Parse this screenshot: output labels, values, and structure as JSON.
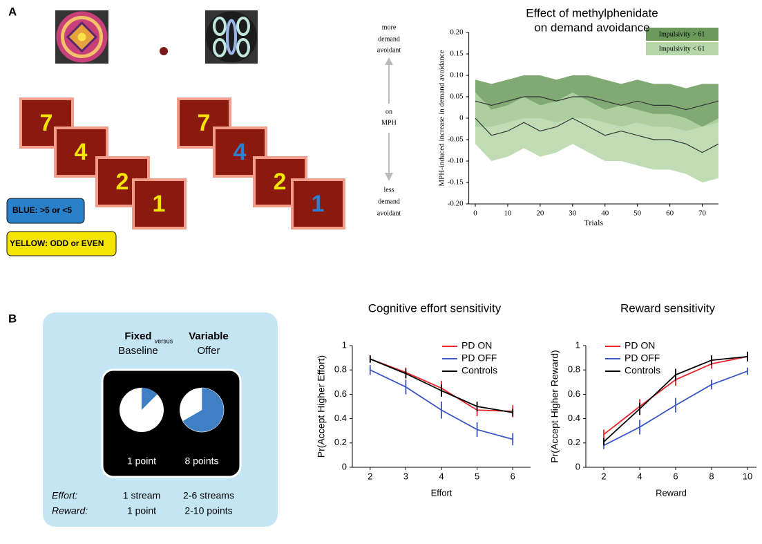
{
  "panel_labels": [
    "A",
    "B"
  ],
  "panel_a": {
    "left_cards": [
      "7",
      "4",
      "2",
      "1"
    ],
    "right_cards": [
      "7",
      "4",
      "2",
      "1"
    ],
    "rules": [
      "BLUE: >5 or <5",
      "YELLOW: ODD or EVEN"
    ]
  },
  "panel_b": {
    "fixed": "Fixed",
    "versus": "versus",
    "variable": "Variable",
    "baseline": "Baseline",
    "offer": "Offer",
    "fixed_points": "1 point",
    "variable_points": "8 points",
    "rows": [
      [
        "Effort:",
        "1 stream",
        "2-6 streams"
      ],
      [
        "Reward:",
        "1 point",
        "2-10 points"
      ]
    ]
  },
  "chart_data": [
    {
      "type": "band-line",
      "title_lines": [
        "Effect of methylphenidate",
        "on demand avoidance"
      ],
      "x_label": "Trials",
      "y_label": "MPH-induced increase in demand avoidance",
      "annotations": {
        "more": [
          "more",
          "demand",
          "avoidant"
        ],
        "on": [
          "on",
          "MPH"
        ],
        "less": [
          "less",
          "demand",
          "avoidant"
        ]
      },
      "xlim": [
        -2,
        75
      ],
      "ylim": [
        -0.2,
        0.2
      ],
      "xticks": [
        0,
        10,
        20,
        30,
        40,
        50,
        60,
        70
      ],
      "yticks": [
        {
          "value": 0.2,
          "label": "0.20"
        },
        0.15,
        {
          "value": 0.1,
          "label": "0.10"
        },
        0.05,
        0,
        -0.05,
        {
          "value": -0.1,
          "label": "-0.10"
        },
        -0.15,
        {
          "value": -0.2,
          "label": "-0.20"
        }
      ],
      "x": [
        0,
        5,
        10,
        15,
        20,
        25,
        30,
        35,
        40,
        45,
        50,
        55,
        60,
        65,
        70,
        75
      ],
      "series": [
        {
          "name": "Impulsivity > 61",
          "color": "#6b9a5c",
          "values": [
            0.04,
            0.03,
            0.04,
            0.05,
            0.05,
            0.04,
            0.05,
            0.05,
            0.04,
            0.03,
            0.04,
            0.03,
            0.03,
            0.02,
            0.03,
            0.04
          ],
          "lower": [
            -0.02,
            -0.02,
            -0.01,
            0.0,
            0.0,
            -0.01,
            0.0,
            0.0,
            -0.01,
            -0.02,
            -0.01,
            -0.02,
            -0.02,
            -0.03,
            -0.02,
            -0.01
          ],
          "upper": [
            0.09,
            0.08,
            0.09,
            0.1,
            0.1,
            0.09,
            0.1,
            0.1,
            0.09,
            0.08,
            0.09,
            0.08,
            0.08,
            0.07,
            0.08,
            0.08
          ]
        },
        {
          "name": "Impulsivity < 61",
          "color": "#b5d6a8",
          "values": [
            0.0,
            -0.04,
            -0.03,
            -0.01,
            -0.03,
            -0.02,
            0.0,
            -0.02,
            -0.04,
            -0.03,
            -0.04,
            -0.05,
            -0.05,
            -0.06,
            -0.08,
            -0.06
          ],
          "lower": [
            -0.06,
            -0.1,
            -0.09,
            -0.07,
            -0.09,
            -0.08,
            -0.06,
            -0.08,
            -0.1,
            -0.1,
            -0.11,
            -0.12,
            -0.12,
            -0.13,
            -0.15,
            -0.14
          ],
          "upper": [
            0.06,
            0.02,
            0.03,
            0.05,
            0.03,
            0.04,
            0.06,
            0.04,
            0.02,
            0.03,
            0.02,
            0.01,
            0.01,
            0.0,
            -0.02,
            0.0
          ]
        }
      ]
    },
    {
      "type": "errorbar-line",
      "title": "Cognitive effort sensitivity",
      "x_label": "Effort",
      "y_label": "Pr(Accept Higher Effort)",
      "xlim": [
        1.5,
        6.5
      ],
      "ylim": [
        0,
        1
      ],
      "xticks": [
        2,
        3,
        4,
        5,
        6
      ],
      "yticks": [
        0,
        0.2,
        0.4,
        0.6,
        0.8,
        1
      ],
      "x": [
        2,
        3,
        4,
        5,
        6
      ],
      "series": [
        {
          "name": "PD ON",
          "color": "#e8252b",
          "values": [
            0.89,
            0.78,
            0.65,
            0.47,
            0.46
          ],
          "errors": [
            0.03,
            0.04,
            0.06,
            0.05,
            0.05
          ]
        },
        {
          "name": "PD OFF",
          "color": "#3a55c4",
          "values": [
            0.8,
            0.66,
            0.47,
            0.31,
            0.23
          ],
          "errors": [
            0.04,
            0.06,
            0.07,
            0.06,
            0.05
          ]
        },
        {
          "name": "Controls",
          "color": "#000000",
          "values": [
            0.89,
            0.77,
            0.63,
            0.5,
            0.45
          ],
          "errors": [
            0.03,
            0.04,
            0.05,
            0.04,
            0.03
          ]
        }
      ]
    },
    {
      "type": "errorbar-line",
      "title": "Reward sensitivity",
      "x_label": "Reward",
      "y_label": "Pr(Accept Higher Reward)",
      "xlim": [
        1,
        10.5
      ],
      "ylim": [
        0,
        1
      ],
      "xticks": [
        2,
        4,
        6,
        8,
        10
      ],
      "yticks": [
        0,
        0.2,
        0.4,
        0.6,
        0.8,
        1
      ],
      "x": [
        2,
        4,
        6,
        8,
        10
      ],
      "series": [
        {
          "name": "PD ON",
          "color": "#e8252b",
          "values": [
            0.27,
            0.5,
            0.72,
            0.85,
            0.91
          ],
          "errors": [
            0.04,
            0.06,
            0.05,
            0.04,
            0.03
          ]
        },
        {
          "name": "PD OFF",
          "color": "#3a55c4",
          "values": [
            0.18,
            0.33,
            0.51,
            0.68,
            0.79
          ],
          "errors": [
            0.03,
            0.06,
            0.06,
            0.04,
            0.03
          ]
        },
        {
          "name": "Controls",
          "color": "#000000",
          "values": [
            0.21,
            0.48,
            0.76,
            0.88,
            0.91
          ],
          "errors": [
            0.03,
            0.05,
            0.05,
            0.04,
            0.04
          ]
        }
      ]
    }
  ]
}
